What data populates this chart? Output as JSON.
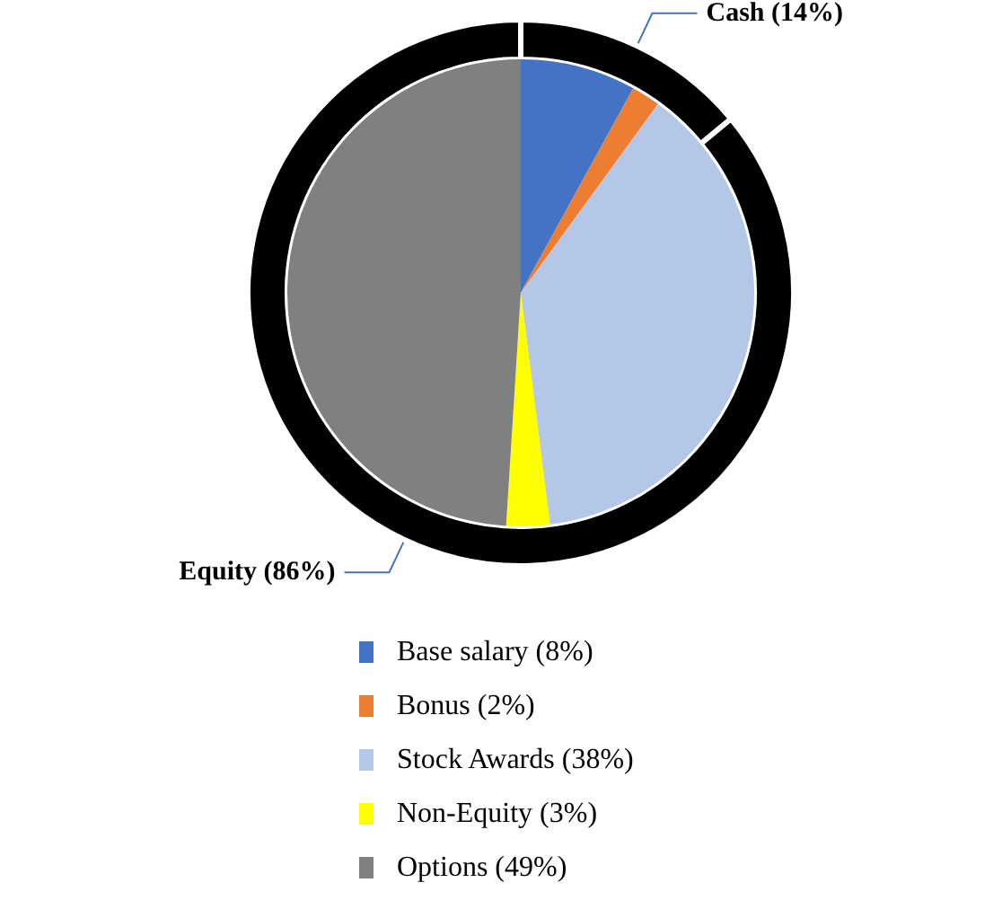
{
  "chart_data": [
    {
      "type": "pie",
      "categories": [
        "Base salary (8%)",
        "Bonus (2%)",
        "Stock Awards (38%)",
        "Non-Equity (3%)",
        "Options (49%)"
      ],
      "values": [
        8,
        2,
        38,
        3,
        49
      ],
      "colors": [
        "#4472c4",
        "#ed7d31",
        "#b4c7e7",
        "#ffff00",
        "#808080"
      ],
      "legend": "bottom"
    },
    {
      "type": "donut",
      "categories": [
        "Cash (14%)",
        "Equity (86%)"
      ],
      "values": [
        14,
        86
      ],
      "colors": [
        "#000000",
        "#000000"
      ],
      "legend": false
    }
  ]
}
